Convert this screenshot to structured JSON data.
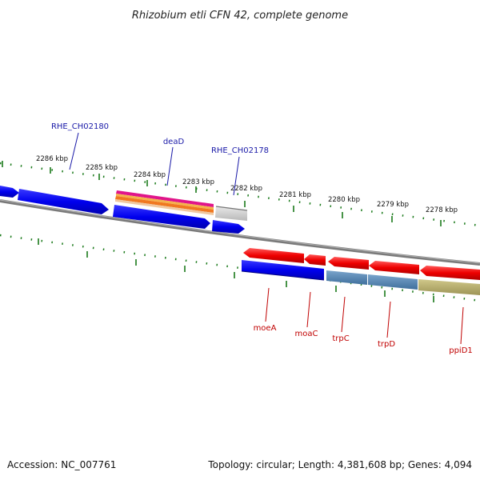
{
  "title": "Rhizobium etli CFN 42, complete genome",
  "footer": {
    "accession": "Accession: NC_007761",
    "summary": "Topology: circular; Length: 4,381,608 bp; Genes: 4,094"
  },
  "upper_ruler_ticks": [
    "2286 kbp",
    "2285 kbp",
    "2284 kbp",
    "2283 kbp",
    "2282 kbp",
    "2281 kbp",
    "2280 kbp",
    "2279 kbp",
    "2278 kbp"
  ],
  "upper_gene_labels": [
    "RHE_CH02180",
    "deaD",
    "RHE_CH02178"
  ],
  "lower_gene_labels": [
    "moeA",
    "moaC",
    "trpC",
    "trpD",
    "ppiD1"
  ],
  "colors": {
    "forward_gene": "#0000ee",
    "reverse_gene": "#ee0000",
    "backbone": "#808080",
    "tick": "#1a7a1a",
    "label_top": "#1a1aa8",
    "label_bottom": "#c00000",
    "trp_gene": "#4a7fb0",
    "ppi_gene": "#b8ae6a"
  }
}
